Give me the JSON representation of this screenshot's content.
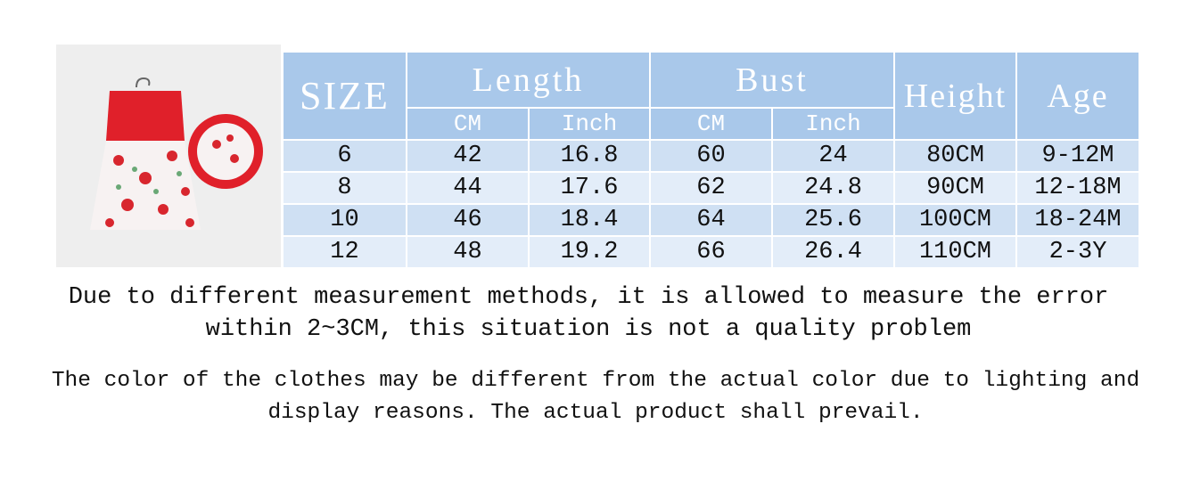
{
  "table": {
    "headers": {
      "size": "SIZE",
      "length": "Length",
      "bust": "Bust",
      "height": "Height",
      "age": "Age",
      "units": [
        "CM",
        "Inch",
        "CM",
        "Inch"
      ]
    },
    "rows": [
      [
        "6",
        "42",
        "16.8",
        "60",
        "24",
        "80CM",
        "9-12M"
      ],
      [
        "8",
        "44",
        "17.6",
        "62",
        "24.8",
        "90CM",
        "12-18M"
      ],
      [
        "10",
        "46",
        "18.4",
        "64",
        "25.6",
        "100CM",
        "18-24M"
      ],
      [
        "12",
        "48",
        "19.2",
        "66",
        "26.4",
        "110CM",
        "2-3Y"
      ]
    ]
  },
  "notes": [
    "Due to different measurement methods, it is allowed to measure the error within 2~3CM, this situation is not a quality problem",
    "The color of the clothes may be different from the actual color due to lighting and display reasons. The actual product shall prevail."
  ]
}
